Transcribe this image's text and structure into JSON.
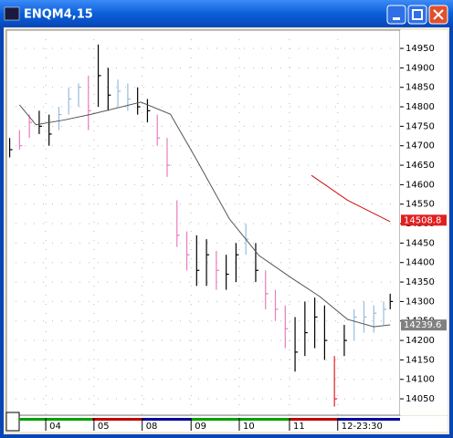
{
  "chart_data": {
    "type": "ohlc",
    "title": "ENQM4,15",
    "xlim": [
      0,
      120
    ],
    "ylim": [
      14008,
      14997
    ],
    "yticks": [
      14950,
      14900,
      14850,
      14800,
      14750,
      14700,
      14650,
      14600,
      14550,
      14500,
      14450,
      14400,
      14350,
      14300,
      14250,
      14200,
      14150,
      14100,
      14050
    ],
    "xticks": [
      {
        "value": 12,
        "label": "04"
      },
      {
        "value": 26.7,
        "label": "05"
      },
      {
        "value": 41.4,
        "label": "08"
      },
      {
        "value": 56.3,
        "label": "09"
      },
      {
        "value": 71,
        "label": "10"
      },
      {
        "value": 86.3,
        "label": "11"
      },
      {
        "value": 101,
        "label": "12-23:30"
      }
    ],
    "grid": true,
    "x": [
      1,
      4,
      7,
      10,
      13,
      16,
      19,
      22,
      25,
      28,
      31,
      34,
      37,
      40,
      43,
      46,
      49,
      52,
      55,
      58,
      61,
      64,
      67,
      70,
      73,
      76,
      79,
      82,
      85,
      88,
      91,
      94,
      97,
      100,
      103,
      106,
      109,
      112,
      115,
      117
    ],
    "high": [
      14720,
      14740,
      14780,
      14790,
      14780,
      14800,
      14850,
      14860,
      14880,
      14960,
      14900,
      14870,
      14860,
      14850,
      14820,
      14780,
      14720,
      14560,
      14480,
      14470,
      14460,
      14430,
      14420,
      14450,
      14500,
      14450,
      14380,
      14330,
      14290,
      14260,
      14300,
      14310,
      14290,
      14160,
      14240,
      14280,
      14300,
      14290,
      14300,
      14320
    ],
    "low": [
      14670,
      14690,
      14720,
      14730,
      14700,
      14740,
      14780,
      14800,
      14740,
      14800,
      14790,
      14800,
      14790,
      14780,
      14760,
      14700,
      14620,
      14440,
      14380,
      14340,
      14340,
      14330,
      14330,
      14350,
      14420,
      14350,
      14280,
      14250,
      14180,
      14120,
      14160,
      14180,
      14150,
      14030,
      14160,
      14200,
      14220,
      14220,
      14240,
      14280
    ],
    "close": [
      14690,
      14700,
      14760,
      14750,
      14730,
      14780,
      14820,
      14850,
      14790,
      14880,
      14830,
      14840,
      14820,
      14800,
      14790,
      14720,
      14650,
      14470,
      14420,
      14380,
      14420,
      14380,
      14370,
      14420,
      14460,
      14380,
      14320,
      14280,
      14230,
      14170,
      14220,
      14260,
      14200,
      14050,
      14200,
      14260,
      14260,
      14270,
      14280,
      14300
    ],
    "colors": [
      "#000000",
      "#e87cc0",
      "#e87cc0",
      "#000000",
      "#000000",
      "#99bbe0",
      "#99bbe0",
      "#99bbe0",
      "#e87cc0",
      "#000000",
      "#000000",
      "#99bbe0",
      "#99bbe0",
      "#000000",
      "#000000",
      "#e87cc0",
      "#e87cc0",
      "#e87cc0",
      "#e87cc0",
      "#000000",
      "#000000",
      "#e87cc0",
      "#000000",
      "#000000",
      "#99bbe0",
      "#000000",
      "#e87cc0",
      "#e87cc0",
      "#e87cc0",
      "#000000",
      "#000000",
      "#000000",
      "#000000",
      "#e02020",
      "#000000",
      "#99bbe0",
      "#99bbe0",
      "#99bbe0",
      "#99bbe0",
      "#000000"
    ],
    "lines": [
      {
        "color": "#555555",
        "x": [
          4,
          9,
          17.5,
          26,
          41,
          50,
          58,
          68,
          77,
          87,
          95.5,
          104,
          112,
          117
        ],
        "values": [
          14805,
          14754,
          14766,
          14781,
          14812,
          14781,
          14664,
          14512,
          14418,
          14360,
          14313,
          14254,
          14235,
          14240
        ]
      },
      {
        "color": "#d01010",
        "x": [
          93,
          104,
          117
        ],
        "values": [
          14624,
          14560,
          14505
        ]
      }
    ],
    "price_tags": [
      {
        "value": 14508.8,
        "color": "#e02020"
      },
      {
        "value": 14239.6,
        "color": "#808080"
      }
    ]
  }
}
